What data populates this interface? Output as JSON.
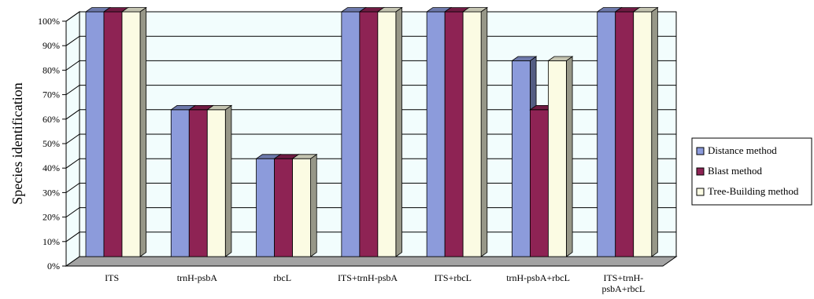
{
  "chart_data": {
    "type": "bar",
    "categories": [
      "ITS",
      "trnH-psbA",
      "rbcL",
      "ITS+trnH-psbA",
      "ITS+rbcL",
      "trnH-psbA+rbcL",
      "ITS+trnH-psbA+rbcL"
    ],
    "category_lines": [
      [
        "ITS"
      ],
      [
        "trnH-psbA"
      ],
      [
        "rbcL"
      ],
      [
        "ITS+trnH-psbA"
      ],
      [
        "ITS+rbcL"
      ],
      [
        "trnH-psbA+rbcL"
      ],
      [
        "ITS+trnH-",
        "psbA+rbcL"
      ]
    ],
    "series": [
      {
        "name": "Distance method",
        "values": [
          100,
          60,
          40,
          100,
          100,
          80,
          100
        ],
        "color": "#8C9BDB"
      },
      {
        "name": "Blast method",
        "values": [
          100,
          60,
          40,
          100,
          100,
          60,
          100
        ],
        "color": "#8E2354"
      },
      {
        "name": "Tree-Building method",
        "values": [
          100,
          60,
          40,
          100,
          100,
          80,
          100
        ],
        "color": "#FBFBE3"
      }
    ],
    "ylabel": "Species identification",
    "xlabel": "",
    "title": "",
    "ylim": [
      0,
      100
    ],
    "yticks": [
      "0%",
      "10%",
      "20%",
      "30%",
      "40%",
      "50%",
      "60%",
      "70%",
      "80%",
      "90%",
      "100%"
    ],
    "grid": true,
    "legend_position": "right",
    "colors": {
      "plot_bg": "#F2FDFD",
      "floor": "#A3A3A3",
      "frame": "#000000"
    }
  }
}
